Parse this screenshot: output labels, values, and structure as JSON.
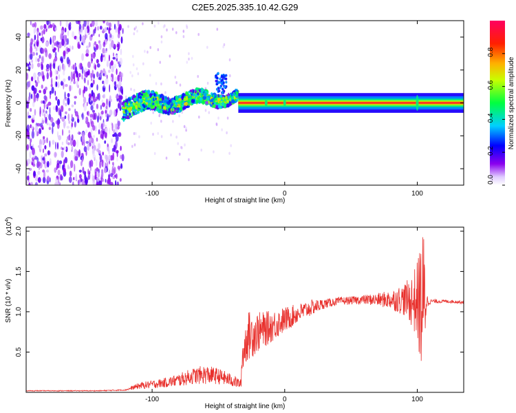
{
  "chart_data": [
    {
      "type": "heatmap",
      "title": "C2E5.2025.335.10.42.G29",
      "xlabel": "Height of straight line (km)",
      "ylabel": "Frequency (Hz)",
      "xlim": [
        -195,
        135
      ],
      "ylim": [
        -50,
        50
      ],
      "xticks": [
        -100,
        0,
        100
      ],
      "xtick_labels": [
        "-100",
        "0",
        "100"
      ],
      "yticks": [
        -40,
        -20,
        0,
        20,
        40
      ],
      "ytick_labels": [
        "-40",
        "-20",
        "0",
        "20",
        "40"
      ],
      "colorbar": {
        "label": "Normalized spectral amplitude",
        "range": [
          0,
          1
        ],
        "ticks": [
          0.0,
          0.2,
          0.4,
          0.6,
          0.8
        ],
        "tick_labels": [
          "0.0",
          "0.2",
          "0.4",
          "0.6",
          "0.8"
        ],
        "colors": [
          "#ffffff",
          "#e8d8ff",
          "#7a00e0",
          "#0000ff",
          "#00d8ff",
          "#00ff40",
          "#ffff00",
          "#ff8000",
          "#ff0000",
          "#ff0060"
        ]
      },
      "regions": [
        {
          "name": "diffuse noise",
          "x_range": [
            -195,
            -122
          ],
          "freq_range": [
            -50,
            50
          ],
          "amplitude": 0.15
        },
        {
          "name": "wandering signal",
          "x_range": [
            -122,
            -35
          ],
          "freq_range": [
            -10,
            18
          ],
          "amplitude": 0.35
        },
        {
          "name": "stable carrier line",
          "x_range": [
            -35,
            135
          ],
          "freq": 0,
          "amplitude": 0.95
        }
      ]
    },
    {
      "type": "line",
      "xlabel": "Height of straight line (km)",
      "ylabel": "SNR (10 * v/v)",
      "scale_label": "(x10",
      "scale_exp": "4",
      "scale_close": ")",
      "xlim": [
        -195,
        135
      ],
      "ylim": [
        0,
        2.05
      ],
      "xticks": [
        -100,
        0,
        100
      ],
      "xtick_labels": [
        "-100",
        "0",
        "100"
      ],
      "yticks": [
        0.5,
        1.0,
        1.5,
        2.0
      ],
      "ytick_labels": [
        "0.5",
        "1.0",
        "1.5",
        "2.0"
      ],
      "series": [
        {
          "name": "SNR",
          "color": "#e8302c",
          "x": [
            -195,
            -160,
            -140,
            -120,
            -110,
            -100,
            -90,
            -80,
            -70,
            -60,
            -50,
            -40,
            -33,
            -32,
            -28,
            -25,
            -20,
            -15,
            -10,
            -5,
            0,
            10,
            20,
            30,
            40,
            50,
            60,
            70,
            80,
            90,
            95,
            100,
            103,
            105,
            107,
            110,
            120,
            135
          ],
          "values": [
            0.02,
            0.02,
            0.02,
            0.03,
            0.08,
            0.1,
            0.12,
            0.15,
            0.2,
            0.22,
            0.2,
            0.15,
            0.1,
            0.45,
            0.7,
            0.72,
            0.75,
            0.78,
            0.82,
            0.86,
            0.9,
            0.98,
            1.05,
            1.1,
            1.13,
            1.14,
            1.15,
            1.15,
            1.15,
            1.15,
            1.14,
            1.13,
            1.1,
            1.12,
            1.13,
            1.13,
            1.13,
            1.12
          ],
          "noise_amplitude": [
            0.005,
            0.005,
            0.005,
            0.008,
            0.04,
            0.05,
            0.06,
            0.08,
            0.1,
            0.12,
            0.1,
            0.08,
            0.06,
            0.25,
            0.3,
            0.3,
            0.25,
            0.22,
            0.2,
            0.18,
            0.16,
            0.12,
            0.1,
            0.06,
            0.05,
            0.05,
            0.06,
            0.08,
            0.12,
            0.2,
            0.3,
            0.5,
            0.9,
            0.9,
            0.1,
            0.03,
            0.02,
            0.02
          ]
        }
      ]
    }
  ]
}
